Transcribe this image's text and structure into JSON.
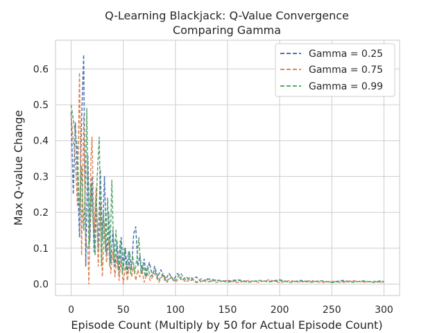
{
  "chart_data": {
    "type": "line",
    "title_line1": "Q-Learning Blackjack: Q-Value Convergence",
    "title_line2": "Comparing Gamma",
    "xlabel": "Episode Count (Multiply by 50 for Actual Episode Count)",
    "ylabel": "Max Q-value Change",
    "xlim": [
      -15,
      315
    ],
    "ylim": [
      -0.032,
      0.68
    ],
    "xticks": [
      0,
      50,
      100,
      150,
      200,
      250,
      300
    ],
    "xtick_labels": [
      "0",
      "50",
      "100",
      "150",
      "200",
      "250",
      "300"
    ],
    "yticks": [
      0.0,
      0.1,
      0.2,
      0.3,
      0.4,
      0.5,
      0.6
    ],
    "ytick_labels": [
      "0.0",
      "0.1",
      "0.2",
      "0.3",
      "0.4",
      "0.5",
      "0.6"
    ],
    "grid": true,
    "legend_position": "top-right",
    "series": [
      {
        "name": "Gamma = 0.25",
        "color": "#4c72b0",
        "points": [
          [
            0,
            0.48
          ],
          [
            2,
            0.25
          ],
          [
            4,
            0.45
          ],
          [
            6,
            0.3
          ],
          [
            8,
            0.13
          ],
          [
            10,
            0.46
          ],
          [
            12,
            0.64
          ],
          [
            14,
            0.05
          ],
          [
            16,
            0.36
          ],
          [
            18,
            0.12
          ],
          [
            20,
            0.3
          ],
          [
            22,
            0.09
          ],
          [
            24,
            0.25
          ],
          [
            26,
            0.1
          ],
          [
            28,
            0.32
          ],
          [
            30,
            0.12
          ],
          [
            32,
            0.3
          ],
          [
            34,
            0.08
          ],
          [
            36,
            0.2
          ],
          [
            38,
            0.06
          ],
          [
            40,
            0.15
          ],
          [
            42,
            0.05
          ],
          [
            44,
            0.12
          ],
          [
            46,
            0.03
          ],
          [
            48,
            0.13
          ],
          [
            50,
            0.04
          ],
          [
            52,
            0.1
          ],
          [
            54,
            0.03
          ],
          [
            56,
            0.09
          ],
          [
            58,
            0.04
          ],
          [
            60,
            0.14
          ],
          [
            62,
            0.16
          ],
          [
            64,
            0.05
          ],
          [
            66,
            0.08
          ],
          [
            68,
            0.03
          ],
          [
            70,
            0.07
          ],
          [
            72,
            0.02
          ],
          [
            75,
            0.06
          ],
          [
            78,
            0.02
          ],
          [
            80,
            0.05
          ],
          [
            83,
            0.02
          ],
          [
            86,
            0.04
          ],
          [
            90,
            0.01
          ],
          [
            94,
            0.03
          ],
          [
            98,
            0.01
          ],
          [
            102,
            0.03
          ],
          [
            106,
            0.01
          ],
          [
            110,
            0.02
          ],
          [
            115,
            0.01
          ],
          [
            120,
            0.02
          ],
          [
            125,
            0.005
          ],
          [
            130,
            0.015
          ],
          [
            140,
            0.01
          ],
          [
            150,
            0.008
          ],
          [
            160,
            0.012
          ],
          [
            170,
            0.006
          ],
          [
            180,
            0.01
          ],
          [
            190,
            0.007
          ],
          [
            200,
            0.012
          ],
          [
            210,
            0.005
          ],
          [
            220,
            0.01
          ],
          [
            230,
            0.006
          ],
          [
            240,
            0.009
          ],
          [
            250,
            0.005
          ],
          [
            260,
            0.01
          ],
          [
            270,
            0.006
          ],
          [
            280,
            0.008
          ],
          [
            290,
            0.005
          ],
          [
            300,
            0.007
          ]
        ]
      },
      {
        "name": "Gamma = 0.75",
        "color": "#dd8452",
        "points": [
          [
            0,
            0.47
          ],
          [
            2,
            0.4
          ],
          [
            4,
            0.35
          ],
          [
            6,
            0.22
          ],
          [
            8,
            0.59
          ],
          [
            10,
            0.08
          ],
          [
            12,
            0.47
          ],
          [
            14,
            0.12
          ],
          [
            16,
            0.1
          ],
          [
            17,
            0.0
          ],
          [
            19,
            0.35
          ],
          [
            20,
            0.41
          ],
          [
            22,
            0.14
          ],
          [
            24,
            0.27
          ],
          [
            26,
            0.05
          ],
          [
            28,
            0.22
          ],
          [
            30,
            0.02
          ],
          [
            32,
            0.17
          ],
          [
            34,
            0.06
          ],
          [
            36,
            0.13
          ],
          [
            38,
            0.03
          ],
          [
            40,
            0.09
          ],
          [
            42,
            0.02
          ],
          [
            44,
            0.08
          ],
          [
            46,
            0.01
          ],
          [
            48,
            0.07
          ],
          [
            50,
            0.0
          ],
          [
            52,
            0.05
          ],
          [
            54,
            0.01
          ],
          [
            56,
            0.06
          ],
          [
            58,
            0.02
          ],
          [
            60,
            0.05
          ],
          [
            62,
            0.01
          ],
          [
            64,
            0.04
          ],
          [
            66,
            0.02
          ],
          [
            68,
            0.04
          ],
          [
            70,
            0.005
          ],
          [
            73,
            0.03
          ],
          [
            76,
            0.01
          ],
          [
            80,
            0.03
          ],
          [
            84,
            0.005
          ],
          [
            88,
            0.025
          ],
          [
            92,
            0.005
          ],
          [
            96,
            0.02
          ],
          [
            100,
            0.005
          ],
          [
            105,
            0.02
          ],
          [
            110,
            0.005
          ],
          [
            115,
            0.015
          ],
          [
            120,
            0.004
          ],
          [
            130,
            0.012
          ],
          [
            140,
            0.005
          ],
          [
            150,
            0.01
          ],
          [
            160,
            0.004
          ],
          [
            170,
            0.01
          ],
          [
            180,
            0.005
          ],
          [
            190,
            0.012
          ],
          [
            200,
            0.004
          ],
          [
            210,
            0.01
          ],
          [
            220,
            0.005
          ],
          [
            230,
            0.01
          ],
          [
            240,
            0.004
          ],
          [
            250,
            0.008
          ],
          [
            260,
            0.004
          ],
          [
            270,
            0.01
          ],
          [
            280,
            0.005
          ],
          [
            290,
            0.008
          ],
          [
            300,
            0.004
          ]
        ]
      },
      {
        "name": "Gamma = 0.99",
        "color": "#55a868",
        "points": [
          [
            0,
            0.5
          ],
          [
            2,
            0.46
          ],
          [
            4,
            0.42
          ],
          [
            6,
            0.38
          ],
          [
            8,
            0.2
          ],
          [
            10,
            0.33
          ],
          [
            12,
            0.15
          ],
          [
            14,
            0.3
          ],
          [
            15,
            0.49
          ],
          [
            17,
            0.1
          ],
          [
            19,
            0.28
          ],
          [
            21,
            0.18
          ],
          [
            23,
            0.08
          ],
          [
            25,
            0.3
          ],
          [
            27,
            0.41
          ],
          [
            29,
            0.05
          ],
          [
            31,
            0.2
          ],
          [
            33,
            0.09
          ],
          [
            35,
            0.24
          ],
          [
            37,
            0.05
          ],
          [
            39,
            0.29
          ],
          [
            41,
            0.06
          ],
          [
            43,
            0.15
          ],
          [
            45,
            0.04
          ],
          [
            47,
            0.12
          ],
          [
            49,
            0.03
          ],
          [
            51,
            0.1
          ],
          [
            53,
            0.04
          ],
          [
            55,
            0.09
          ],
          [
            57,
            0.03
          ],
          [
            59,
            0.08
          ],
          [
            61,
            0.03
          ],
          [
            63,
            0.07
          ],
          [
            65,
            0.13
          ],
          [
            67,
            0.03
          ],
          [
            69,
            0.06
          ],
          [
            71,
            0.02
          ],
          [
            73,
            0.05
          ],
          [
            76,
            0.02
          ],
          [
            80,
            0.04
          ],
          [
            84,
            0.01
          ],
          [
            88,
            0.03
          ],
          [
            92,
            0.01
          ],
          [
            96,
            0.02
          ],
          [
            100,
            0.01
          ],
          [
            105,
            0.03
          ],
          [
            110,
            0.01
          ],
          [
            115,
            0.02
          ],
          [
            120,
            0.005
          ],
          [
            125,
            0.015
          ],
          [
            130,
            0.005
          ],
          [
            140,
            0.012
          ],
          [
            150,
            0.005
          ],
          [
            160,
            0.01
          ],
          [
            170,
            0.005
          ],
          [
            180,
            0.01
          ],
          [
            190,
            0.006
          ],
          [
            200,
            0.01
          ],
          [
            210,
            0.005
          ],
          [
            220,
            0.008
          ],
          [
            230,
            0.005
          ],
          [
            240,
            0.009
          ],
          [
            250,
            0.004
          ],
          [
            260,
            0.008
          ],
          [
            270,
            0.005
          ],
          [
            280,
            0.009
          ],
          [
            290,
            0.005
          ],
          [
            298,
            0.01
          ],
          [
            300,
            0.005
          ]
        ]
      }
    ]
  }
}
